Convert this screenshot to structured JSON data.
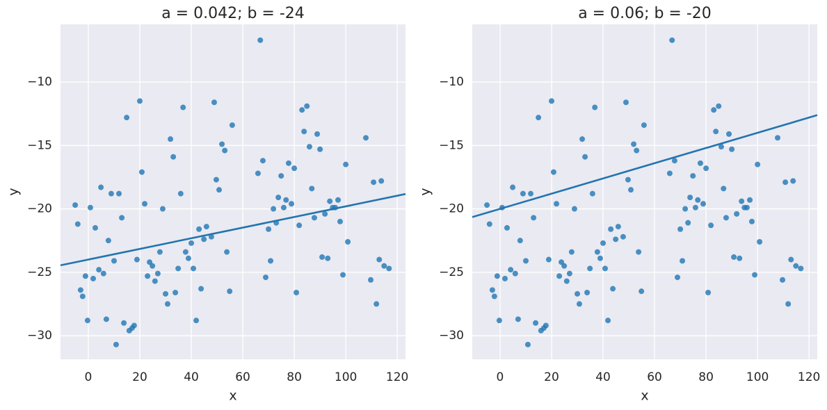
{
  "chart_data": [
    {
      "type": "scatter",
      "title": "a = 0.042; b = -24",
      "x_label": "x",
      "y_label": "y",
      "xlim": [
        -10.8,
        123.2
      ],
      "ylim": [
        -31.86,
        -5.45
      ],
      "xticks": [
        0,
        20,
        40,
        60,
        80,
        100,
        120
      ],
      "yticks": [
        {
          "value": -30,
          "label": "−30"
        },
        {
          "value": -25,
          "label": "−25"
        },
        {
          "value": -20,
          "label": "−20"
        },
        {
          "value": -15,
          "label": "−15"
        },
        {
          "value": -10,
          "label": "−10"
        }
      ],
      "grid": true,
      "color": "#1f77b4",
      "x": [
        -5.1,
        -4.1,
        -3.0,
        -2.2,
        -1.1,
        -0.3,
        0.8,
        1.9,
        2.7,
        4.1,
        4.9,
        5.9,
        7.0,
        7.8,
        8.9,
        10.0,
        10.8,
        11.9,
        13.0,
        13.8,
        14.9,
        15.9,
        17.0,
        17.8,
        18.9,
        20.0,
        20.8,
        21.9,
        23.0,
        23.8,
        24.9,
        25.9,
        27.0,
        27.8,
        28.9,
        30.0,
        30.8,
        31.9,
        33.0,
        33.8,
        34.9,
        35.9,
        36.8,
        37.8,
        38.9,
        40.0,
        40.8,
        41.9,
        43.0,
        43.8,
        44.9,
        45.9,
        47.8,
        48.9,
        49.7,
        50.8,
        51.9,
        53.0,
        53.8,
        54.9,
        55.9,
        65.9,
        66.8,
        67.8,
        68.9,
        70.0,
        70.8,
        71.9,
        73.0,
        73.8,
        74.9,
        75.9,
        76.8,
        77.8,
        78.9,
        80.0,
        80.8,
        81.9,
        83.0,
        83.8,
        84.9,
        85.9,
        86.8,
        87.8,
        88.9,
        90.0,
        90.8,
        91.9,
        93.0,
        93.8,
        94.9,
        95.9,
        97.0,
        97.8,
        98.9,
        100.0,
        100.8,
        107.8,
        109.7,
        110.8,
        111.9,
        113.0,
        113.8,
        114.9,
        116.8
      ],
      "y": [
        -19.7,
        -21.2,
        -26.4,
        -26.9,
        -25.3,
        -28.8,
        -19.9,
        -25.5,
        -21.5,
        -24.8,
        -18.3,
        -25.1,
        -28.7,
        -22.5,
        -18.8,
        -24.1,
        -30.7,
        -18.8,
        -20.7,
        -29.0,
        -12.8,
        -29.6,
        -29.4,
        -29.2,
        -24.0,
        -11.5,
        -17.1,
        -19.6,
        -25.3,
        -24.2,
        -24.5,
        -25.7,
        -25.1,
        -23.4,
        -20.0,
        -26.7,
        -27.5,
        -14.5,
        -15.9,
        -26.6,
        -24.7,
        -18.8,
        -12.0,
        -23.4,
        -23.9,
        -22.7,
        -24.7,
        -28.8,
        -21.6,
        -26.3,
        -22.4,
        -21.4,
        -22.2,
        -11.6,
        -17.7,
        -18.5,
        -14.9,
        -15.4,
        -23.4,
        -26.5,
        -13.4,
        -17.2,
        -6.7,
        -16.2,
        -25.4,
        -21.6,
        -24.1,
        -20.0,
        -21.1,
        -19.1,
        -17.4,
        -19.9,
        -19.3,
        -16.4,
        -19.6,
        -16.8,
        -26.6,
        -21.3,
        -12.2,
        -13.9,
        -11.9,
        -15.1,
        -18.4,
        -20.7,
        -14.1,
        -15.3,
        -23.8,
        -20.4,
        -23.9,
        -19.4,
        -19.9,
        -19.9,
        -19.3,
        -21.0,
        -25.2,
        -16.5,
        -22.6,
        -14.4,
        -25.6,
        -17.9,
        -27.5,
        -24.0,
        -17.8,
        -24.5,
        -24.7
      ],
      "fit_line": {
        "x": [
          -10.8,
          123.2
        ],
        "y": [
          -24.45,
          -18.83
        ],
        "color": "#2275b0"
      }
    },
    {
      "type": "scatter",
      "title": "a = 0.06; b = -20",
      "x_label": "x",
      "y_label": "y",
      "xlim": [
        -10.8,
        123.2
      ],
      "ylim": [
        -31.86,
        -5.45
      ],
      "xticks": [
        0,
        20,
        40,
        60,
        80,
        100,
        120
      ],
      "yticks": [
        {
          "value": -30,
          "label": "−30"
        },
        {
          "value": -25,
          "label": "−25"
        },
        {
          "value": -20,
          "label": "−20"
        },
        {
          "value": -15,
          "label": "−15"
        },
        {
          "value": -10,
          "label": "−10"
        }
      ],
      "grid": true,
      "color": "#1f77b4",
      "x": [
        -5.1,
        -4.1,
        -3.0,
        -2.2,
        -1.1,
        -0.3,
        0.8,
        1.9,
        2.7,
        4.1,
        4.9,
        5.9,
        7.0,
        7.8,
        8.9,
        10.0,
        10.8,
        11.9,
        13.0,
        13.8,
        14.9,
        15.9,
        17.0,
        17.8,
        18.9,
        20.0,
        20.8,
        21.9,
        23.0,
        23.8,
        24.9,
        25.9,
        27.0,
        27.8,
        28.9,
        30.0,
        30.8,
        31.9,
        33.0,
        33.8,
        34.9,
        35.9,
        36.8,
        37.8,
        38.9,
        40.0,
        40.8,
        41.9,
        43.0,
        43.8,
        44.9,
        45.9,
        47.8,
        48.9,
        49.7,
        50.8,
        51.9,
        53.0,
        53.8,
        54.9,
        55.9,
        65.9,
        66.8,
        67.8,
        68.9,
        70.0,
        70.8,
        71.9,
        73.0,
        73.8,
        74.9,
        75.9,
        76.8,
        77.8,
        78.9,
        80.0,
        80.8,
        81.9,
        83.0,
        83.8,
        84.9,
        85.9,
        86.8,
        87.8,
        88.9,
        90.0,
        90.8,
        91.9,
        93.0,
        93.8,
        94.9,
        95.9,
        97.0,
        97.8,
        98.9,
        100.0,
        100.8,
        107.8,
        109.7,
        110.8,
        111.9,
        113.0,
        113.8,
        114.9,
        116.8
      ],
      "y": [
        -19.7,
        -21.2,
        -26.4,
        -26.9,
        -25.3,
        -28.8,
        -19.9,
        -25.5,
        -21.5,
        -24.8,
        -18.3,
        -25.1,
        -28.7,
        -22.5,
        -18.8,
        -24.1,
        -30.7,
        -18.8,
        -20.7,
        -29.0,
        -12.8,
        -29.6,
        -29.4,
        -29.2,
        -24.0,
        -11.5,
        -17.1,
        -19.6,
        -25.3,
        -24.2,
        -24.5,
        -25.7,
        -25.1,
        -23.4,
        -20.0,
        -26.7,
        -27.5,
        -14.5,
        -15.9,
        -26.6,
        -24.7,
        -18.8,
        -12.0,
        -23.4,
        -23.9,
        -22.7,
        -24.7,
        -28.8,
        -21.6,
        -26.3,
        -22.4,
        -21.4,
        -22.2,
        -11.6,
        -17.7,
        -18.5,
        -14.9,
        -15.4,
        -23.4,
        -26.5,
        -13.4,
        -17.2,
        -6.7,
        -16.2,
        -25.4,
        -21.6,
        -24.1,
        -20.0,
        -21.1,
        -19.1,
        -17.4,
        -19.9,
        -19.3,
        -16.4,
        -19.6,
        -16.8,
        -26.6,
        -21.3,
        -12.2,
        -13.9,
        -11.9,
        -15.1,
        -18.4,
        -20.7,
        -14.1,
        -15.3,
        -23.8,
        -20.4,
        -23.9,
        -19.4,
        -19.9,
        -19.9,
        -19.3,
        -21.0,
        -25.2,
        -16.5,
        -22.6,
        -14.4,
        -25.6,
        -17.9,
        -27.5,
        -24.0,
        -17.8,
        -24.5,
        -24.7
      ],
      "fit_line": {
        "x": [
          -10.8,
          123.2
        ],
        "y": [
          -20.65,
          -12.61
        ],
        "color": "#2275b0"
      }
    }
  ]
}
